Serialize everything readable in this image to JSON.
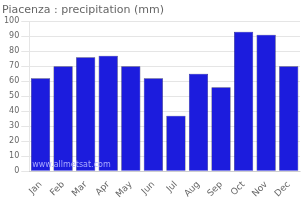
{
  "chart_data": {
    "type": "bar",
    "title": "Piacenza : precipitation (mm)",
    "categories": [
      "Jan",
      "Feb",
      "Mar",
      "Apr",
      "May",
      "Jun",
      "Jul",
      "Aug",
      "Sep",
      "Oct",
      "Nov",
      "Dec"
    ],
    "values": [
      62,
      70,
      76,
      77,
      70,
      62,
      37,
      65,
      56,
      93,
      91,
      70
    ],
    "color": "#1c1cdd",
    "ylim": [
      0,
      100
    ],
    "yticks": [
      0,
      10,
      20,
      30,
      40,
      50,
      60,
      70,
      80,
      90,
      100
    ],
    "grid": true,
    "annotations": [
      "www.allmetsat.com"
    ]
  }
}
